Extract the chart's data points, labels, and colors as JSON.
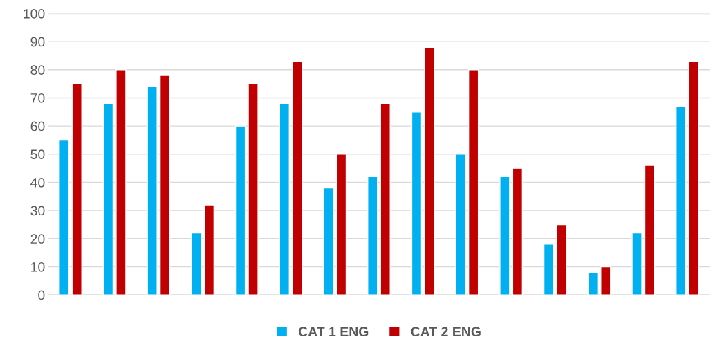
{
  "chart_data": {
    "type": "bar",
    "categories": [
      null,
      null,
      null,
      null,
      null,
      null,
      null,
      null,
      null,
      null,
      null,
      null,
      null,
      null,
      null
    ],
    "series": [
      {
        "name": "CAT 1 ENG",
        "color": "#00b0f0",
        "values": [
          55,
          68,
          74,
          22,
          60,
          68,
          38,
          42,
          65,
          50,
          42,
          18,
          8,
          22,
          67
        ]
      },
      {
        "name": "CAT 2 ENG",
        "color": "#c00000",
        "values": [
          75,
          80,
          78,
          32,
          75,
          83,
          50,
          68,
          88,
          80,
          45,
          25,
          10,
          46,
          83
        ]
      }
    ],
    "ylim": [
      0,
      100
    ],
    "yticks": [
      0,
      10,
      20,
      30,
      40,
      50,
      60,
      70,
      80,
      90,
      100
    ],
    "grid": "y",
    "legend": "bottom",
    "tick_labels": "y"
  }
}
